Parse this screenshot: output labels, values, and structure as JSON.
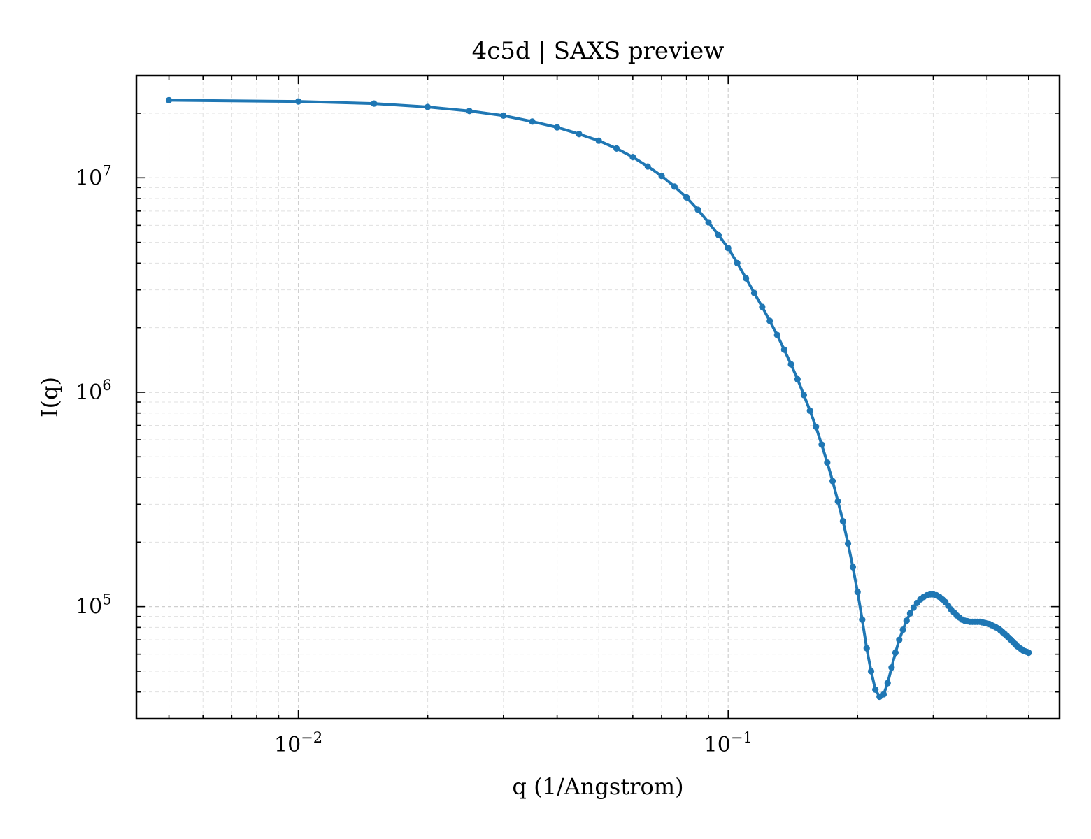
{
  "chart_data": {
    "type": "line",
    "title": "4c5d | SAXS preview",
    "xlabel": "q (1/Angstrom)",
    "ylabel": "I(q)",
    "xscale": "log",
    "yscale": "log",
    "xlim": [
      0.0042,
      0.59
    ],
    "ylim": [
      30000,
      30000000
    ],
    "grid": true,
    "legend": "none",
    "line_color": "#1f77b4",
    "x_ticks": [
      {
        "base": "10",
        "exp": "−2",
        "value": 0.01
      },
      {
        "base": "10",
        "exp": "−1",
        "value": 0.1
      }
    ],
    "y_ticks": [
      {
        "base": "10",
        "exp": "5",
        "value": 100000
      },
      {
        "base": "10",
        "exp": "6",
        "value": 1000000
      },
      {
        "base": "10",
        "exp": "7",
        "value": 10000000
      }
    ],
    "series": [
      {
        "x": [
          0.005,
          0.01,
          0.015,
          0.02,
          0.025,
          0.03,
          0.035,
          0.04,
          0.045,
          0.05,
          0.055,
          0.06,
          0.065,
          0.07,
          0.075,
          0.08,
          0.085,
          0.09,
          0.095,
          0.1,
          0.105,
          0.11,
          0.115,
          0.12,
          0.125,
          0.13,
          0.135,
          0.14,
          0.145,
          0.15,
          0.155,
          0.16,
          0.165,
          0.17,
          0.175,
          0.18,
          0.185,
          0.19,
          0.195,
          0.2,
          0.205,
          0.21,
          0.215,
          0.22,
          0.225,
          0.23,
          0.235,
          0.24,
          0.245,
          0.25,
          0.255,
          0.26,
          0.265,
          0.27,
          0.275,
          0.28,
          0.285,
          0.29,
          0.295,
          0.3,
          0.305,
          0.31,
          0.315,
          0.32,
          0.325,
          0.33,
          0.335,
          0.34,
          0.345,
          0.35,
          0.355,
          0.36,
          0.365,
          0.37,
          0.375,
          0.38,
          0.385,
          0.39,
          0.395,
          0.4,
          0.405,
          0.41,
          0.415,
          0.42,
          0.425,
          0.43,
          0.435,
          0.44,
          0.445,
          0.45,
          0.455,
          0.46,
          0.465,
          0.47,
          0.475,
          0.48,
          0.485,
          0.49,
          0.495,
          0.5
        ],
        "y": [
          23000000,
          22700000,
          22200000,
          21400000,
          20500000,
          19500000,
          18300000,
          17200000,
          16000000,
          14900000,
          13700000,
          12500000,
          11300000,
          10200000,
          9100000,
          8100000,
          7100000,
          6200000,
          5400000,
          4700000,
          4000000,
          3400000,
          2900000,
          2500000,
          2150000,
          1850000,
          1580000,
          1350000,
          1150000,
          970000,
          820000,
          690000,
          570000,
          470000,
          385000,
          310000,
          250000,
          197000,
          153000,
          117000,
          87000,
          64000,
          50000,
          41000,
          38000,
          39000,
          44000,
          52000,
          61000,
          70000,
          78000,
          86000,
          93000,
          99000,
          104000,
          108000,
          111000,
          113000,
          114000,
          114000,
          113000,
          111000,
          108000,
          105000,
          101000,
          97000,
          94000,
          91000,
          89000,
          87000,
          86000,
          85500,
          85000,
          85000,
          85000,
          85000,
          85000,
          84500,
          84000,
          83500,
          83000,
          82000,
          81000,
          80000,
          79000,
          77500,
          76000,
          74500,
          73000,
          71500,
          70000,
          68500,
          67000,
          65500,
          64500,
          63500,
          62500,
          62000,
          61500,
          61000
        ]
      }
    ]
  }
}
